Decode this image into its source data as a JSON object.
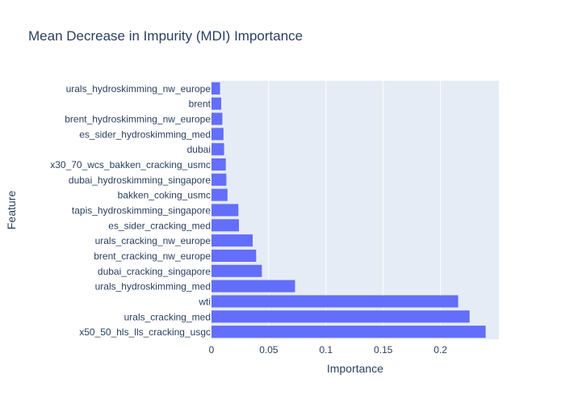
{
  "chart_data": {
    "type": "bar",
    "orientation": "horizontal",
    "title": "Mean Decrease in Impurity (MDI) Importance",
    "xlabel": "Importance",
    "ylabel": "Feature",
    "xlim": [
      0,
      0.251
    ],
    "xticks": [
      0,
      0.05,
      0.1,
      0.15,
      0.2
    ],
    "xtick_labels": [
      "0",
      "0.05",
      "0.1",
      "0.15",
      "0.2"
    ],
    "grid": true,
    "colors": {
      "bar": "#636efa",
      "plot_bg": "#e5ecf6",
      "grid": "#ffffff",
      "text": "#2a3f5f",
      "paper_bg": "#ffffff"
    },
    "categories": [
      "urals_hydroskimming_nw_europe",
      "brent",
      "brent_hydroskimming_nw_europe",
      "es_sider_hydroskimming_med",
      "dubai",
      "x30_70_wcs_bakken_cracking_usmc",
      "dubai_hydroskimming_singapore",
      "bakken_coking_usmc",
      "tapis_hydroskimming_singapore",
      "es_sider_cracking_med",
      "urals_cracking_nw_europe",
      "brent_cracking_nw_europe",
      "dubai_cracking_singapore",
      "urals_hydroskimming_med",
      "wti",
      "urals_cracking_med",
      "x50_50_hls_lls_cracking_usgc"
    ],
    "values": [
      0.0075,
      0.0085,
      0.0095,
      0.0105,
      0.011,
      0.0125,
      0.013,
      0.014,
      0.0235,
      0.024,
      0.036,
      0.039,
      0.044,
      0.073,
      0.2155,
      0.2255,
      0.2395
    ]
  }
}
